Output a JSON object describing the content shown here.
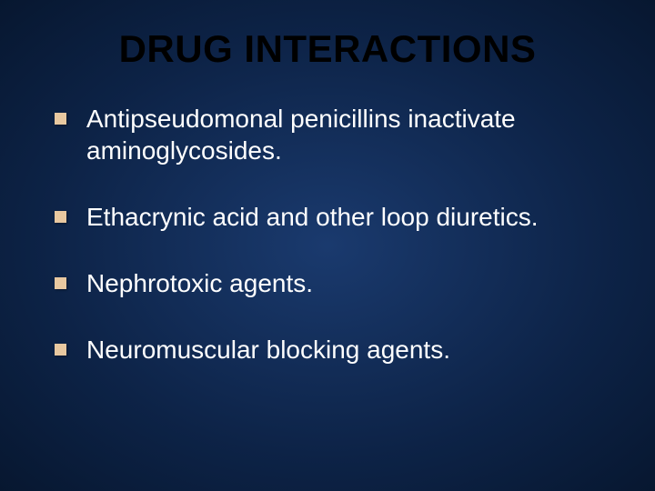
{
  "slide": {
    "title": "DRUG INTERACTIONS",
    "bullets": [
      "Antipseudomonal penicillins inactivate aminoglycosides.",
      "Ethacrynic acid and other loop diuretics.",
      "Nephrotoxic agents.",
      "Neuromuscular blocking agents."
    ],
    "style": {
      "background_gradient_inner": "#1a3a6e",
      "background_gradient_mid": "#0d2347",
      "background_gradient_outer": "#071730",
      "title_color": "#000000",
      "title_fontsize": 42,
      "title_fontweight": "bold",
      "bullet_text_color": "#ffffff",
      "bullet_text_fontsize": 28,
      "bullet_marker_color": "#e8c8a0",
      "bullet_marker_size": 13,
      "bullet_spacing": 38,
      "font_family": "Arial"
    }
  }
}
